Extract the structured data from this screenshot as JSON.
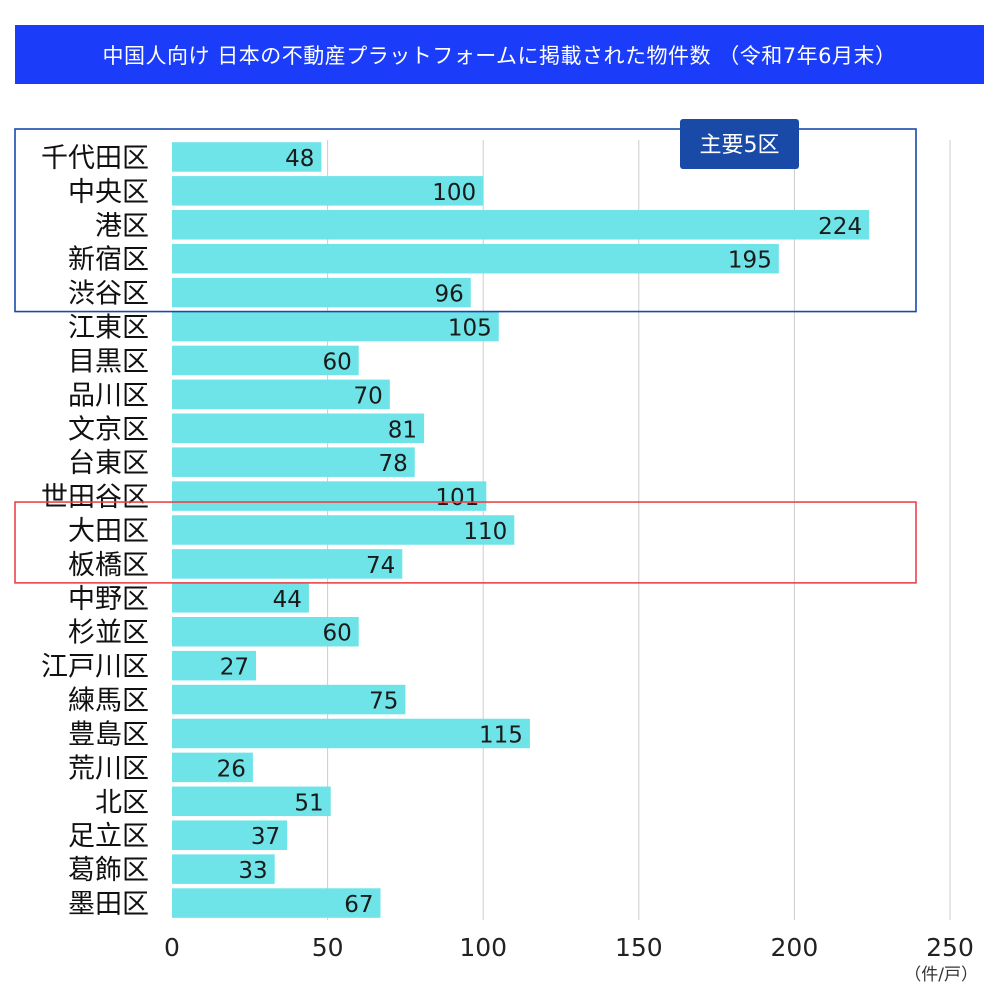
{
  "title": "中国人向け 日本の不動産プラットフォームに掲載された物件数 （令和7年6月末）",
  "colors": {
    "title_bg": "#1b3dfa",
    "bar": "#6ee3e8",
    "grid": "#cccccc",
    "highlight_main": "#1a4aa8",
    "highlight_secondary": "#e8454b",
    "badge_bg": "#1a4aa8"
  },
  "highlights": {
    "main": {
      "label": "主要5区",
      "categories": [
        "千代田区",
        "中央区",
        "港区",
        "新宿区",
        "渋谷区"
      ]
    },
    "secondary": {
      "categories": [
        "大田区",
        "板橋区"
      ]
    }
  },
  "chart_data": {
    "type": "bar",
    "orientation": "horizontal",
    "title": "中国人向け 日本の不動産プラットフォームに掲載された物件数 （令和7年6月末）",
    "categories": [
      "千代田区",
      "中央区",
      "港区",
      "新宿区",
      "渋谷区",
      "江東区",
      "目黒区",
      "品川区",
      "文京区",
      "台東区",
      "世田谷区",
      "大田区",
      "板橋区",
      "中野区",
      "杉並区",
      "江戸川区",
      "練馬区",
      "豊島区",
      "荒川区",
      "北区",
      "足立区",
      "葛飾区",
      "墨田区"
    ],
    "values": [
      48,
      100,
      224,
      195,
      96,
      105,
      60,
      70,
      81,
      78,
      101,
      110,
      74,
      44,
      60,
      27,
      75,
      115,
      26,
      51,
      37,
      33,
      67
    ],
    "xlim": [
      0,
      250
    ],
    "xticks": [
      0,
      50,
      100,
      150,
      200,
      250
    ],
    "unit": "（件/戸）",
    "grid": true,
    "data_labels": true
  }
}
